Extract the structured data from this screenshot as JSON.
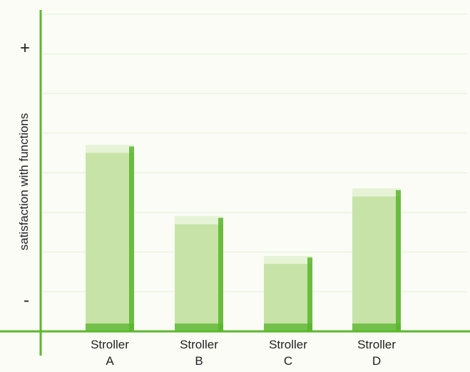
{
  "chart_data": {
    "type": "bar",
    "categories": [
      "Stroller\nA",
      "Stroller\nB",
      "Stroller\nC",
      "Stroller\nD"
    ],
    "values": [
      4.7,
      2.9,
      1.9,
      3.6
    ],
    "ylabel": "satisfaction with functions",
    "y_high_label": "+",
    "y_low_label": "-",
    "ylim": [
      0,
      8
    ],
    "grid": true,
    "legend": "none",
    "colors": {
      "axis": "#5cb82e",
      "bar_fill": "#c8e3a8",
      "bar_top": "#e6f3d6",
      "bar_side": "#57b52b",
      "grid": "#e6efd8",
      "text": "#222222"
    }
  }
}
